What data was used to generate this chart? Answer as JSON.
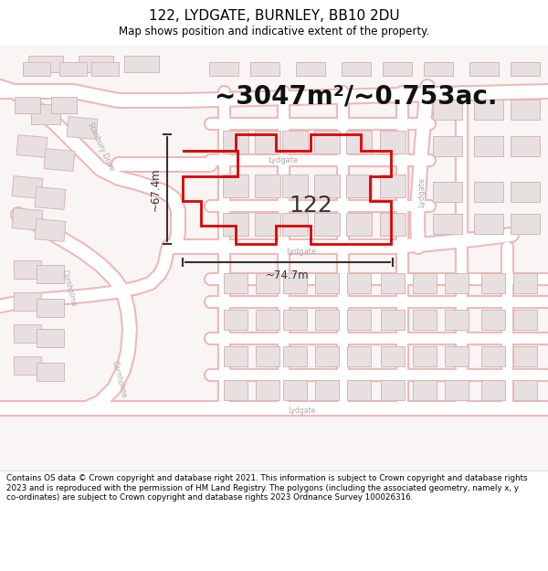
{
  "title": "122, LYDGATE, BURNLEY, BB10 2DU",
  "subtitle": "Map shows position and indicative extent of the property.",
  "area_text": "~3047m²/~0.753ac.",
  "label_122": "122",
  "dim1_label": "~67.4m",
  "dim2_label": "~74.7m",
  "footer": "Contains OS data © Crown copyright and database right 2021. This information is subject to Crown copyright and database rights 2023 and is reproduced with the permission of HM Land Registry. The polygons (including the associated geometry, namely x, y co-ordinates) are subject to Crown copyright and database rights 2023 Ordnance Survey 100026316.",
  "map_bg": "#f9f5f5",
  "road_line_color": "#f0b8b8",
  "road_fill_color": "#ffffff",
  "building_fill": "#e8e0e0",
  "building_edge": "#d4b8b8",
  "plot_edge_color": "#dd0000",
  "plot_fill": "none",
  "street_label_color": "#aaaaaa",
  "dim_color": "#333333",
  "title_color": "#000000",
  "footer_color": "#000000",
  "area_text_color": "#111111",
  "label_color": "#333333",
  "title_fontsize": 11,
  "subtitle_fontsize": 8.5,
  "area_fontsize": 20,
  "label_fontsize": 18,
  "footer_fontsize": 6.3
}
